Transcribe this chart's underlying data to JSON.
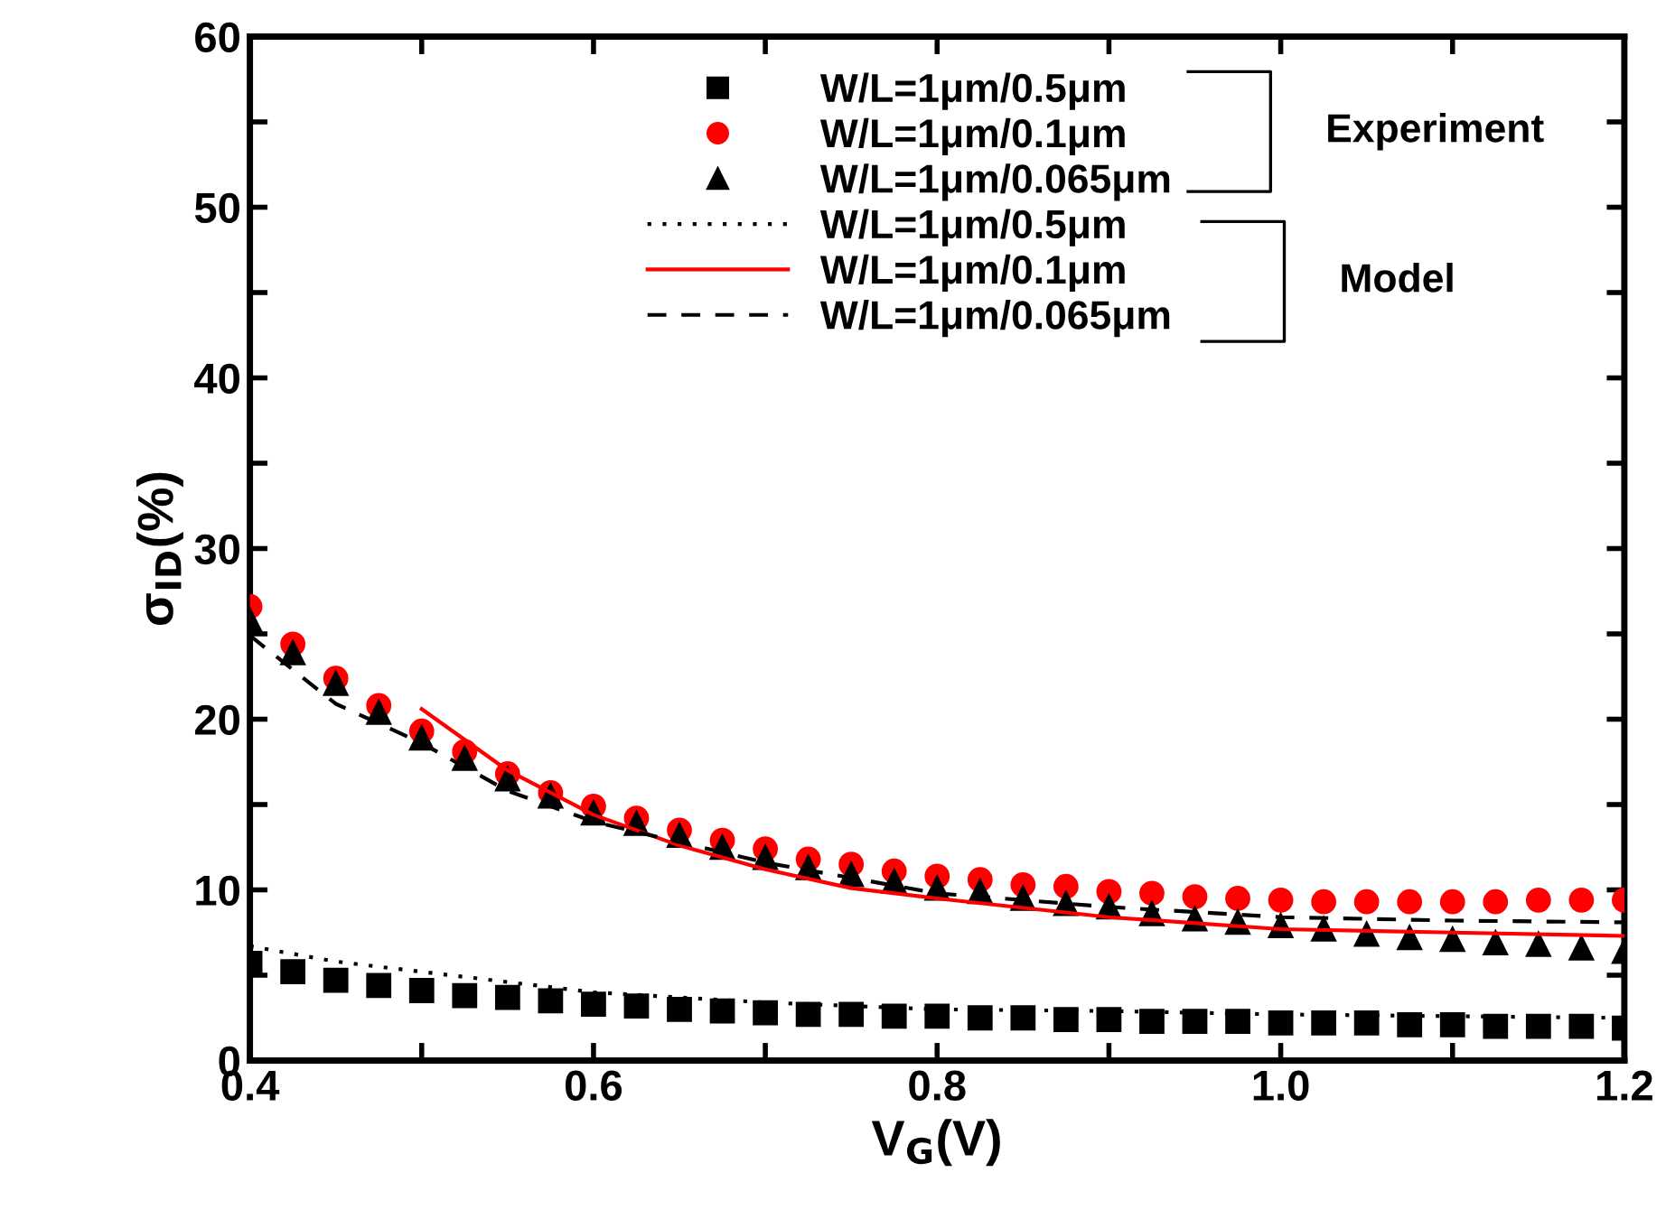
{
  "chart_data": {
    "type": "scatter",
    "xlabel": "V$_{G}$(V)",
    "ylabel": "σ$_{ID}$(%)",
    "xlim": [
      0.4,
      1.2
    ],
    "ylim": [
      0,
      60
    ],
    "xticks": [
      0.4,
      {
        "value": 0.5,
        "label": null
      },
      0.6,
      {
        "value": 0.7,
        "label": null
      },
      0.8,
      {
        "value": 0.9,
        "label": null
      },
      {
        "value": 1.0,
        "label": "1.0"
      },
      {
        "value": 1.1,
        "label": null
      },
      1.2
    ],
    "yticks": [
      0,
      {
        "value": 5,
        "label": null
      },
      10,
      {
        "value": 15,
        "label": null
      },
      20,
      {
        "value": 25,
        "label": null
      },
      30,
      {
        "value": 35,
        "label": null
      },
      40,
      {
        "value": 45,
        "label": null
      },
      50,
      {
        "value": 55,
        "label": null
      },
      60
    ],
    "grid": false,
    "legend": "top",
    "annotations": [
      "Experiment",
      "Model"
    ],
    "x": [
      0.4,
      0.425,
      0.45,
      0.475,
      0.5,
      0.525,
      0.55,
      0.575,
      0.6,
      0.625,
      0.65,
      0.675,
      0.7,
      0.725,
      0.75,
      0.775,
      0.8,
      0.825,
      0.85,
      0.875,
      0.9,
      0.925,
      0.95,
      0.975,
      1.0,
      1.025,
      1.05,
      1.075,
      1.1,
      1.125,
      1.15,
      1.175,
      1.2
    ],
    "series": [
      {
        "name": "W/L=1μm/0.5μm",
        "marker": "square",
        "color": "#000000",
        "values": [
          5.7,
          5.2,
          4.7,
          4.4,
          4.1,
          3.8,
          3.7,
          3.5,
          3.3,
          3.2,
          3.0,
          2.9,
          2.8,
          2.7,
          2.7,
          2.6,
          2.6,
          2.5,
          2.5,
          2.4,
          2.4,
          2.3,
          2.3,
          2.3,
          2.2,
          2.2,
          2.2,
          2.1,
          2.1,
          2.0,
          2.0,
          2.0,
          1.9
        ]
      },
      {
        "name": "W/L=1μm/0.1μm",
        "marker": "circle",
        "color": "#ff0000",
        "values": [
          26.6,
          24.4,
          22.4,
          20.8,
          19.3,
          18.1,
          16.8,
          15.7,
          14.9,
          14.2,
          13.5,
          12.9,
          12.4,
          11.8,
          11.5,
          11.1,
          10.8,
          10.6,
          10.3,
          10.2,
          9.9,
          9.8,
          9.6,
          9.5,
          9.4,
          9.3,
          9.3,
          9.3,
          9.3,
          9.3,
          9.4,
          9.4,
          9.4
        ]
      },
      {
        "name": "W/L=1μm/0.065μm",
        "marker": "triangle",
        "color": "#000000",
        "values": [
          25.8,
          23.9,
          22.1,
          20.4,
          18.9,
          17.7,
          16.5,
          15.5,
          14.5,
          13.9,
          13.2,
          12.5,
          11.9,
          11.3,
          10.9,
          10.5,
          10.1,
          9.9,
          9.5,
          9.2,
          9.0,
          8.6,
          8.3,
          8.1,
          7.9,
          7.7,
          7.4,
          7.2,
          7.1,
          6.9,
          6.8,
          6.6,
          6.4
        ]
      },
      {
        "name": "W/L=1μm/0.5μm",
        "type": "line",
        "line_style": "dotted",
        "color": "#000000",
        "x": [
          0.4,
          0.45,
          0.5,
          0.6,
          0.7,
          0.8,
          0.9,
          1.0,
          1.1,
          1.2
        ],
        "values": [
          6.7,
          5.8,
          5.2,
          4.0,
          3.4,
          3.0,
          2.9,
          2.7,
          2.6,
          2.5
        ]
      },
      {
        "name": "W/L=1μm/0.1μm",
        "type": "line",
        "line_style": "solid",
        "color": "#ff0000",
        "x": [
          0.5,
          0.55,
          0.6,
          0.65,
          0.7,
          0.75,
          0.8,
          0.9,
          1.0,
          1.1,
          1.2
        ],
        "values": [
          20.6,
          17.0,
          14.4,
          12.6,
          11.2,
          10.1,
          9.5,
          8.4,
          7.7,
          7.5,
          7.3
        ]
      },
      {
        "name": "W/L=1μm/0.065μm",
        "type": "line",
        "line_style": "dashed",
        "color": "#000000",
        "x": [
          0.4,
          0.45,
          0.5,
          0.55,
          0.6,
          0.65,
          0.7,
          0.75,
          0.8,
          0.9,
          1.0,
          1.1,
          1.2
        ],
        "values": [
          24.9,
          20.9,
          18.6,
          15.8,
          14.0,
          12.8,
          11.6,
          10.7,
          9.8,
          9.0,
          8.4,
          8.2,
          8.1
        ]
      }
    ]
  }
}
